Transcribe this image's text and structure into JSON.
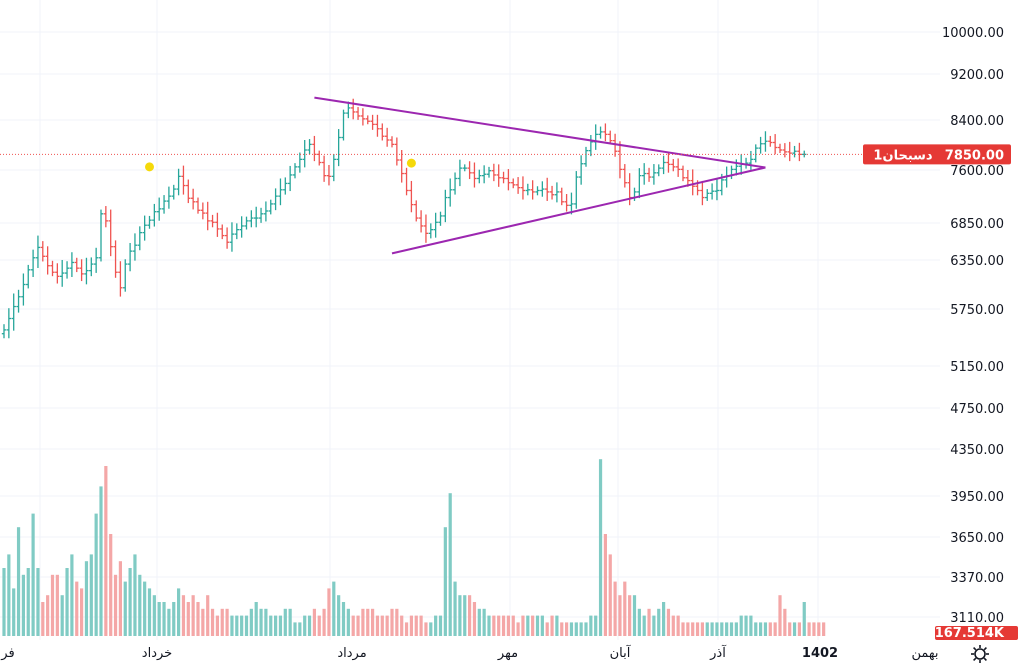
{
  "chart_data": {
    "type": "ohlc",
    "symbol_label": "دسبحان1",
    "last_price": 7850,
    "last_price_label": "7850.00",
    "volume_label": "167.514K",
    "colors": {
      "up": "#26a69a",
      "down": "#ef5350",
      "vol_up": "#80cbc4",
      "vol_down": "#f4a7a7",
      "pattern": "#9c27b0",
      "badge": "#e53935",
      "marker": "#f5d90a",
      "grid": "#f0f3fa"
    },
    "y_ticks": [
      "10000.00",
      "9200.00",
      "8400.00",
      "7600.00",
      "6850.00",
      "6350.00",
      "5750.00",
      "5150.00",
      "4750.00",
      "4350.00",
      "3950.00",
      "3650.00",
      "3370.00",
      "3110.00"
    ],
    "y_tick_values": [
      10000,
      9200,
      8400,
      7600,
      6850,
      6350,
      5750,
      5150,
      4750,
      4350,
      3950,
      3650,
      3370,
      3110
    ],
    "x_labels": [
      {
        "text": "فر",
        "bold": false
      },
      {
        "text": "خرداد",
        "bold": false
      },
      {
        "text": "مرداد",
        "bold": false
      },
      {
        "text": "مهر",
        "bold": false
      },
      {
        "text": "آبان",
        "bold": false
      },
      {
        "text": "آذر",
        "bold": false
      },
      {
        "text": "1402",
        "bold": true
      },
      {
        "text": "بهمن",
        "bold": false
      }
    ],
    "closes": [
      5530,
      5650,
      5780,
      5900,
      6050,
      6230,
      6380,
      6520,
      6400,
      6280,
      6200,
      6150,
      6190,
      6250,
      6320,
      6250,
      6180,
      6220,
      6300,
      6380,
      6980,
      6880,
      6530,
      6200,
      6010,
      6300,
      6470,
      6550,
      6720,
      6820,
      6890,
      7010,
      7050,
      7160,
      7230,
      7330,
      7510,
      7380,
      7200,
      7150,
      7030,
      6990,
      6880,
      6860,
      6770,
      6680,
      6590,
      6700,
      6760,
      6810,
      6880,
      6920,
      6920,
      6980,
      7020,
      7120,
      7230,
      7320,
      7410,
      7530,
      7650,
      7770,
      7920,
      8010,
      7850,
      7720,
      7520,
      7510,
      7770,
      8120,
      8520,
      8610,
      8540,
      8470,
      8420,
      8380,
      8330,
      8260,
      8140,
      8080,
      8010,
      7760,
      7550,
      7310,
      7110,
      6920,
      6810,
      6710,
      6760,
      6860,
      6950,
      7210,
      7320,
      7480,
      7630,
      7630,
      7560,
      7480,
      7520,
      7540,
      7590,
      7530,
      7490,
      7480,
      7420,
      7390,
      7350,
      7310,
      7320,
      7290,
      7310,
      7330,
      7290,
      7250,
      7290,
      7150,
      7100,
      7120,
      7500,
      7700,
      7910,
      8050,
      8170,
      8210,
      8170,
      8070,
      7900,
      7610,
      7420,
      7210,
      7290,
      7520,
      7550,
      7500,
      7560,
      7630,
      7720,
      7690,
      7650,
      7610,
      7490,
      7450,
      7370,
      7310,
      7210,
      7270,
      7300,
      7310,
      7460,
      7520,
      7610,
      7660,
      7690,
      7710,
      7770,
      7950,
      8020,
      8060,
      8040,
      7960,
      7920,
      7890,
      7870,
      7900,
      7850,
      7850
    ],
    "volumes": [
      100,
      120,
      70,
      160,
      90,
      100,
      180,
      100,
      50,
      60,
      90,
      90,
      60,
      100,
      120,
      80,
      70,
      110,
      120,
      180,
      220,
      250,
      150,
      90,
      110,
      80,
      100,
      120,
      90,
      80,
      70,
      60,
      50,
      50,
      40,
      50,
      70,
      60,
      50,
      60,
      50,
      40,
      60,
      40,
      30,
      40,
      40,
      30,
      30,
      30,
      30,
      40,
      50,
      40,
      40,
      30,
      30,
      30,
      40,
      40,
      20,
      20,
      30,
      30,
      40,
      30,
      40,
      70,
      80,
      60,
      50,
      40,
      30,
      30,
      40,
      40,
      40,
      30,
      30,
      30,
      40,
      40,
      30,
      20,
      30,
      30,
      30,
      20,
      20,
      30,
      30,
      160,
      210,
      80,
      60,
      60,
      60,
      50,
      40,
      40,
      30,
      30,
      30,
      30,
      30,
      30,
      20,
      30,
      30,
      30,
      30,
      30,
      20,
      30,
      30,
      20,
      20,
      20,
      20,
      20,
      20,
      30,
      30,
      260,
      150,
      120,
      80,
      60,
      80,
      60,
      60,
      40,
      30,
      40,
      30,
      40,
      50,
      40,
      30,
      30,
      20,
      20,
      20,
      20,
      20,
      20,
      20,
      20,
      20,
      20,
      20,
      20,
      30,
      30,
      30,
      20,
      20,
      20,
      20,
      20,
      60,
      40,
      20,
      20,
      20,
      50,
      20,
      20,
      20,
      20
    ],
    "triangle": {
      "upper": [
        {
          "i": 64,
          "price": 8790
        },
        {
          "i": 157,
          "price": 7640
        }
      ],
      "lower": [
        {
          "i": 80,
          "price": 6440
        },
        {
          "i": 157,
          "price": 7640
        }
      ]
    },
    "markers": [
      {
        "i": 30,
        "price": 7650
      },
      {
        "i": 84,
        "price": 7710
      }
    ]
  }
}
